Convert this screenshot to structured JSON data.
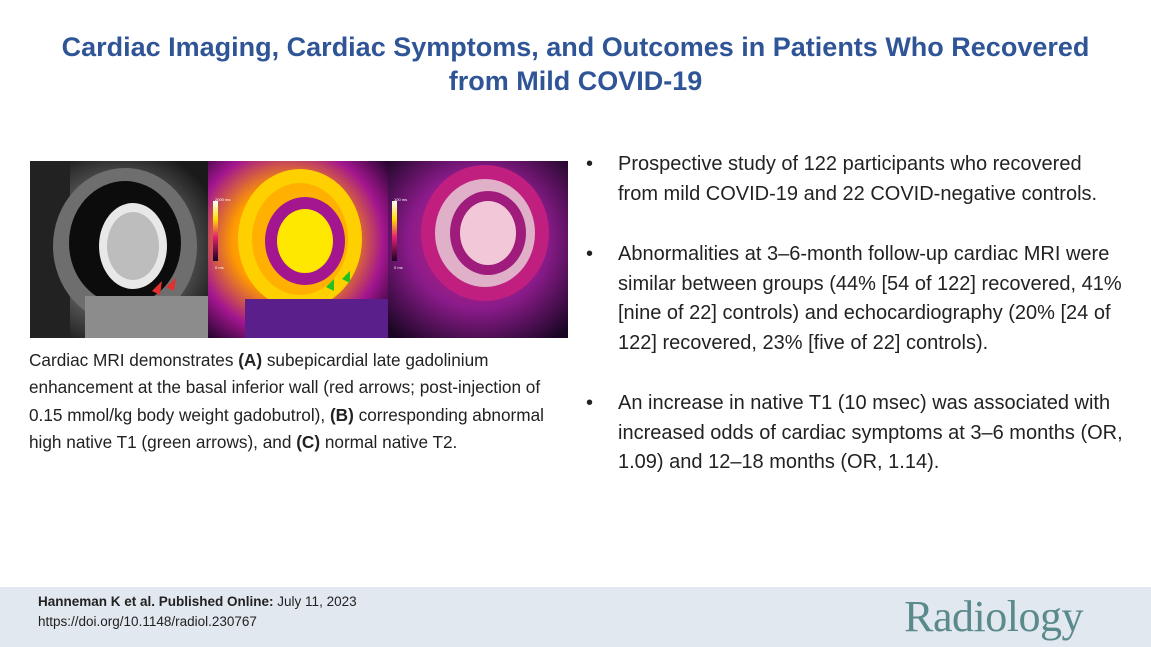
{
  "title": {
    "line1": "Cardiac Imaging, Cardiac Symptoms, and Outcomes in Patients Who Recovered",
    "line2": "from Mild COVID-19"
  },
  "figure": {
    "panel_b_scale_top": "2000 ms",
    "panel_b_scale_bottom": "0 ms",
    "panel_c_scale_top": "100 ms",
    "panel_c_scale_bottom": "0 ms"
  },
  "caption": {
    "t1": "Cardiac MRI demonstrates ",
    "b1": "(A)",
    "t2": " subepicardial late gadolinium enhancement at the basal inferior wall (red arrows; post-injection of 0.15 mmol/kg body weight gadobutrol), ",
    "b2": "(B)",
    "t3": " corresponding abnormal high native T1 (green arrows), and ",
    "b3": "(C)",
    "t4": " normal native T2."
  },
  "bullets": [
    "Prospective study of 122 participants who recovered from mild COVID-19 and 22 COVID-negative controls.",
    "Abnormalities at 3–6-month follow-up cardiac MRI were similar between groups (44% [54 of 122] recovered, 41% [nine of 22] controls) and echocardiography (20% [24 of 122] recovered, 23% [five of 22] controls).",
    "An increase in native T1 (10 msec) was associated with increased odds of cardiac symptoms at 3–6 months (OR, 1.09) and 12–18 months (OR, 1.14)."
  ],
  "bullet_symbol": "•",
  "footer": {
    "author_label": "Hanneman K et al. Published Online:",
    "date": " July 11, 2023",
    "doi": "https://doi.org/10.1148/radiol.230767",
    "logo": "Radiology"
  },
  "colors": {
    "title": "#2f5597",
    "footer_bg": "#e2e8ef",
    "logo": "#5b8a8c"
  }
}
